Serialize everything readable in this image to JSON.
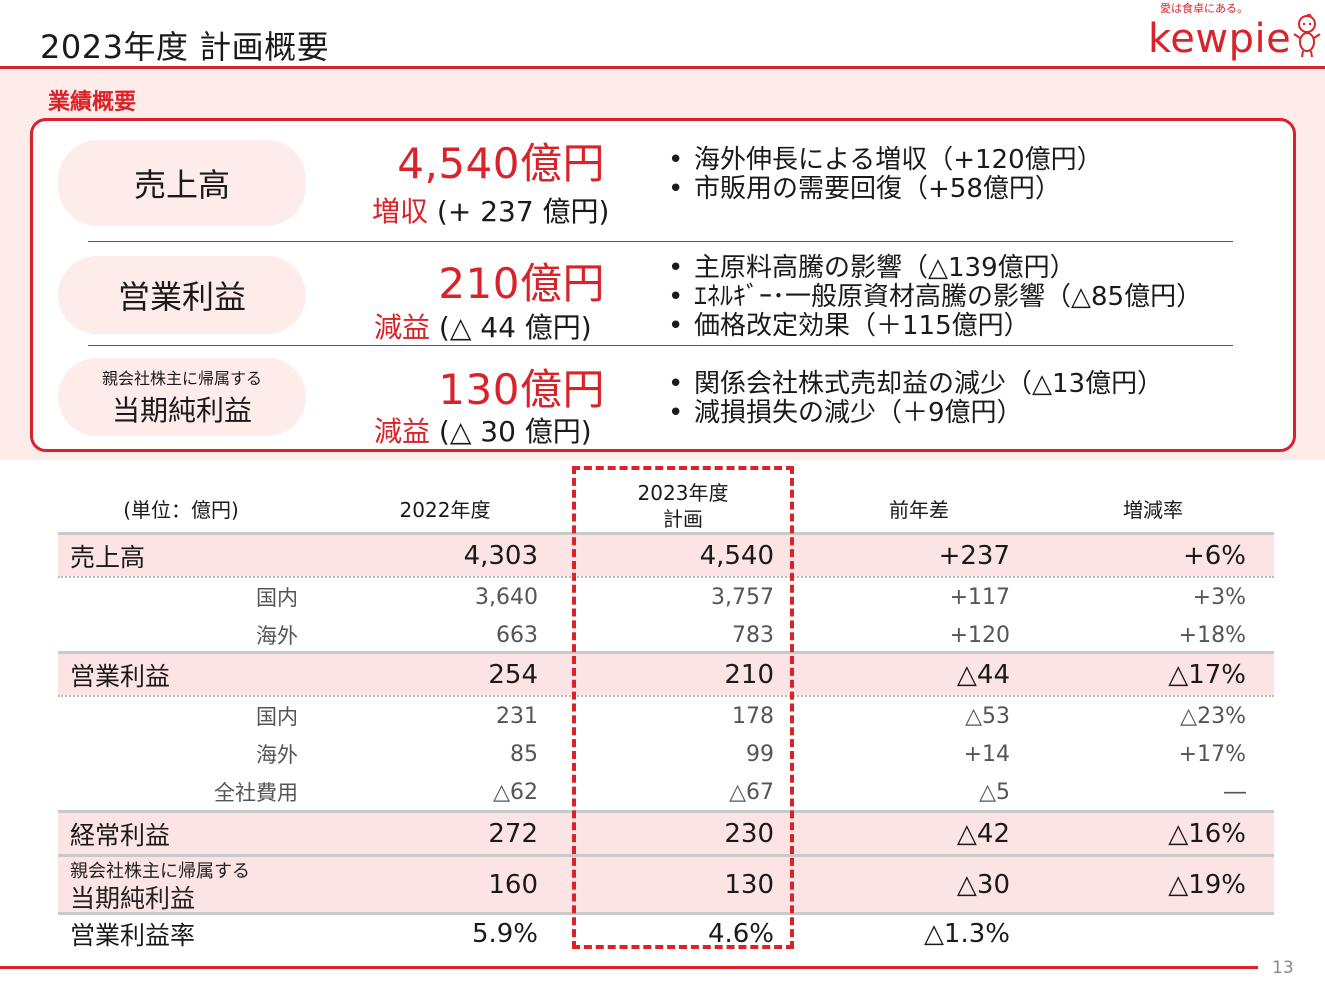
{
  "slide": {
    "title": "2023年度 計画概要",
    "page_number": "13"
  },
  "brand": {
    "tagline": "愛は食卓にある。",
    "logo_text": "kewpie",
    "accent_color": "#d8232a"
  },
  "summary": {
    "section_label": "業績概要",
    "items": [
      {
        "label": "売上高",
        "value": "4,540億円",
        "change_word": "増収",
        "change_detail": " (+ 237 億円)",
        "bullets": [
          "海外伸長による増収（+120億円）",
          "市販用の需要回復（+58億円）"
        ]
      },
      {
        "label": "営業利益",
        "value": "210億円",
        "change_word": "減益",
        "change_detail": " (△ 44 億円)",
        "bullets": [
          "主原料高騰の影響（△139億円）",
          "ｴﾈﾙｷﾞｰ･一般原資材高騰の影響（△85億円）",
          "価格改定効果（＋115億円）"
        ]
      },
      {
        "label_line1": "親会社株主に帰属する",
        "label_line2": "当期純利益",
        "value": "130億円",
        "change_word": "減益",
        "change_detail": " (△ 30 億円)",
        "bullets": [
          "関係会社株式売却益の減少（△13億円）",
          "減損損失の減少（＋9億円）"
        ]
      }
    ]
  },
  "table": {
    "headers": {
      "unit": "(単位：億円)",
      "col1": "2022年度",
      "col2_line1": "2023年度",
      "col2_line2": "計画",
      "col3": "前年差",
      "col4": "増減率"
    },
    "rows": [
      {
        "label": "売上高",
        "v2022": "4,303",
        "v2023": "4,540",
        "diff": "+237",
        "rate": "+6%"
      },
      {
        "label": "国内",
        "v2022": "3,640",
        "v2023": "3,757",
        "diff": "+117",
        "rate": "+3%"
      },
      {
        "label": "海外",
        "v2022": "663",
        "v2023": "783",
        "diff": "+120",
        "rate": "+18%"
      },
      {
        "label": "営業利益",
        "v2022": "254",
        "v2023": "210",
        "diff": "△44",
        "rate": "△17%"
      },
      {
        "label": "国内",
        "v2022": "231",
        "v2023": "178",
        "diff": "△53",
        "rate": "△23%"
      },
      {
        "label": "海外",
        "v2022": "85",
        "v2023": "99",
        "diff": "+14",
        "rate": "+17%"
      },
      {
        "label": "全社費用",
        "v2022": "△62",
        "v2023": "△67",
        "diff": "△5",
        "rate": "―"
      },
      {
        "label": "経常利益",
        "v2022": "272",
        "v2023": "230",
        "diff": "△42",
        "rate": "△16%"
      },
      {
        "label_line1": "親会社株主に帰属する",
        "label_line2": "当期純利益",
        "v2022": "160",
        "v2023": "130",
        "diff": "△30",
        "rate": "△19%"
      },
      {
        "label": "営業利益率",
        "v2022": "5.9%",
        "v2023": "4.6%",
        "diff": "△1.3%",
        "rate": ""
      }
    ]
  }
}
